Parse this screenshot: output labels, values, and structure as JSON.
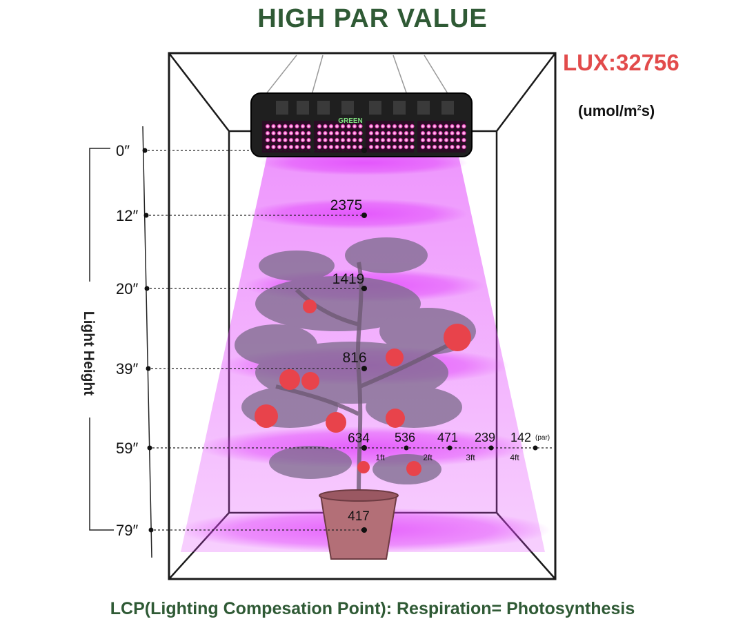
{
  "title": "HIGH PAR VALUE",
  "lux": "LUX:32756",
  "unit": {
    "prefix": "(umol/m",
    "superscript": "2",
    "suffix": "s)"
  },
  "axis_label": "Light Height",
  "heights": [
    "0″",
    "12″",
    "20″",
    "39″",
    "59″",
    "79″"
  ],
  "center_par": [
    "",
    "2375",
    "1419",
    "816",
    "634",
    "417"
  ],
  "lateral_readings": {
    "values": [
      "536",
      "471",
      "239",
      "142"
    ],
    "distances": [
      "1ft",
      "2ft",
      "3ft",
      "4ft"
    ],
    "par_tag": "(par)"
  },
  "brand": "GREEN",
  "footer": "LCP(Lighting Compesation Point): Respiration= Photosynthesis",
  "colors": {
    "title": "#2f5a35",
    "lux": "#e24b4b",
    "light": "#e040fb",
    "frame": "#1a1a1a",
    "plant": "#7a6a8a",
    "tomato": "#e8434b",
    "pot": "#b36f77"
  }
}
